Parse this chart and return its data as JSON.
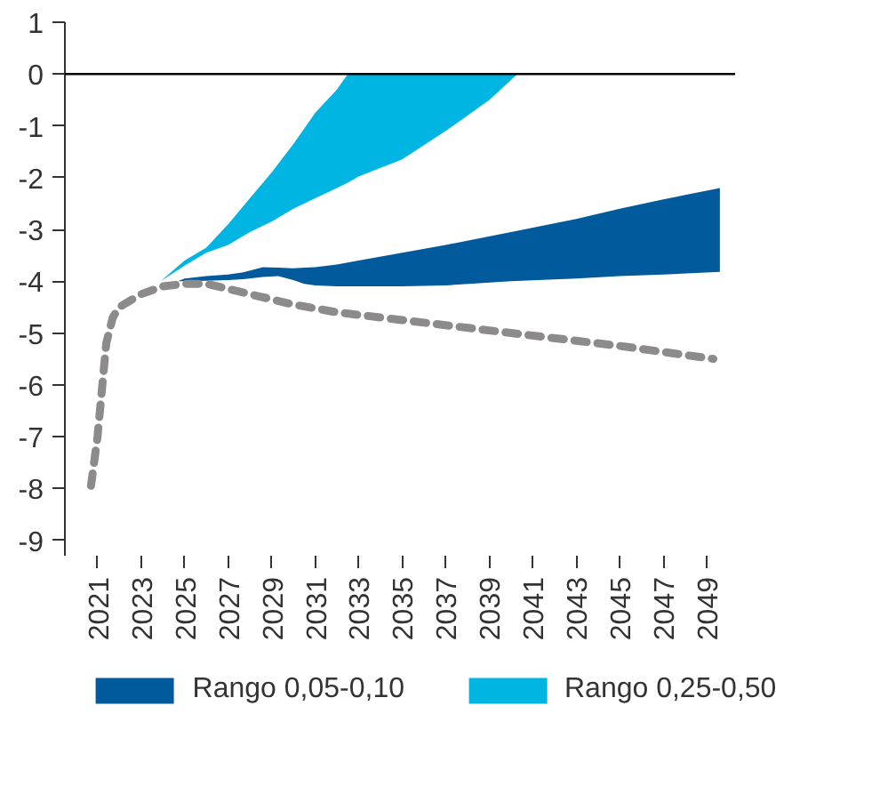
{
  "chart_data": {
    "type": "line",
    "xlim": [
      2019.5,
      2050.3
    ],
    "ylim": [
      -9.3,
      1
    ],
    "xticks": [
      2021,
      2023,
      2025,
      2027,
      2029,
      2031,
      2033,
      2035,
      2037,
      2039,
      2041,
      2043,
      2045,
      2047,
      2049
    ],
    "yticks": [
      -9,
      -8,
      -7,
      -6,
      -5,
      -4,
      -3,
      -2,
      -1,
      0,
      1
    ],
    "legend": "bottom",
    "ref_lines": [
      {
        "axis": "y",
        "value": 0,
        "color": "#000000",
        "line_style": "solid"
      }
    ],
    "series": [
      {
        "name": "Rango 0,05-0,10",
        "color": "#005a9c",
        "x": [
          2024.7,
          2025,
          2026,
          2027,
          2027.7,
          2028.6,
          2029.3,
          2030,
          2030.5,
          2031,
          2032,
          2033,
          2035,
          2037,
          2040,
          2043,
          2045,
          2047,
          2049.6
        ],
        "values": [
          null,
          null,
          null,
          null,
          null,
          null,
          null,
          null,
          null,
          null,
          null,
          null,
          null,
          null,
          null,
          null,
          null,
          null,
          null
        ],
        "upper": [
          -4.0,
          -3.95,
          -3.9,
          -3.87,
          -3.83,
          -3.73,
          -3.74,
          -3.75,
          -3.74,
          -3.73,
          -3.68,
          -3.6,
          -3.45,
          -3.3,
          -3.05,
          -2.8,
          -2.6,
          -2.42,
          -2.2
        ],
        "lower": [
          -4.0,
          -4.0,
          -3.99,
          -3.98,
          -3.96,
          -3.92,
          -3.9,
          -3.98,
          -4.05,
          -4.08,
          -4.1,
          -4.1,
          -4.1,
          -4.08,
          -4.0,
          -3.95,
          -3.9,
          -3.87,
          -3.82
        ]
      },
      {
        "name": "Rango 0,25-0,50",
        "color": "#00b5e2",
        "x": [
          2023.9,
          2025,
          2026,
          2027,
          2028,
          2029,
          2030,
          2031,
          2032,
          2032.5,
          2033,
          2035,
          2037,
          2039,
          2040.3
        ],
        "values": [
          null,
          null,
          null,
          null,
          null,
          null,
          null,
          null,
          null,
          null,
          null,
          null,
          null,
          null,
          null
        ],
        "upper": [
          -4.0,
          -3.6,
          -3.35,
          -2.9,
          -2.4,
          -1.9,
          -1.35,
          -0.75,
          -0.3,
          0,
          0,
          0,
          0,
          0,
          0
        ],
        "lower": [
          -4.0,
          -3.7,
          -3.45,
          -3.3,
          -3.05,
          -2.85,
          -2.6,
          -2.4,
          -2.2,
          -2.1,
          -1.98,
          -1.65,
          -1.1,
          -0.5,
          0
        ]
      },
      {
        "color": "#8c8a8a",
        "line_style": "dashed",
        "x": [
          2020.7,
          2021,
          2021.2,
          2021.4,
          2021.7,
          2022,
          2023,
          2024,
          2025,
          2026,
          2027,
          2028,
          2030,
          2032,
          2035,
          2040,
          2045,
          2049.3
        ],
        "values": [
          -7.95,
          -7.0,
          -6.1,
          -5.2,
          -4.7,
          -4.5,
          -4.25,
          -4.1,
          -4.05,
          -4.05,
          -4.15,
          -4.25,
          -4.45,
          -4.6,
          -4.75,
          -5.0,
          -5.25,
          -5.5
        ]
      }
    ]
  }
}
